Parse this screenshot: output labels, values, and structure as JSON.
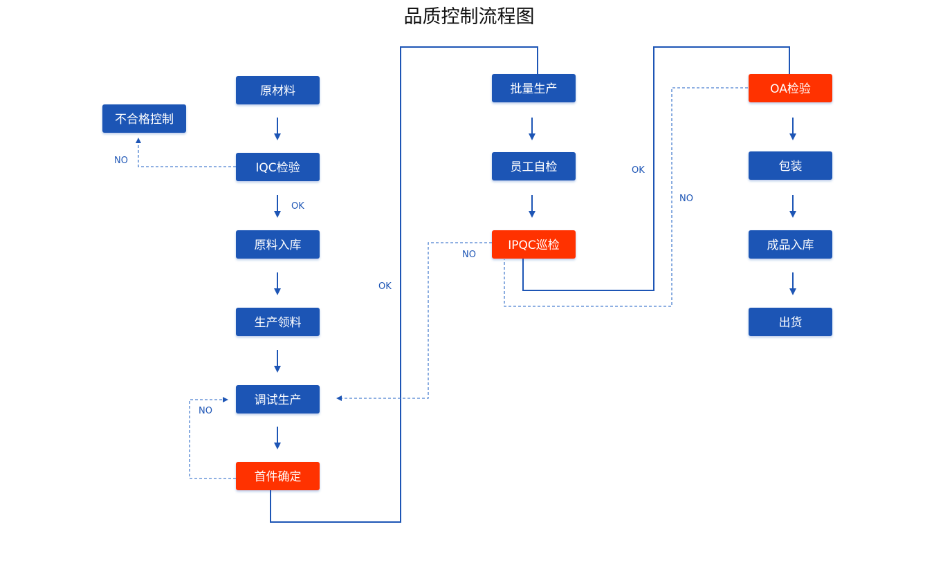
{
  "title": "品质控制流程图",
  "colors": {
    "normal": "#1d55b5",
    "checkpoint": "#ff3300",
    "line": "#1d55b5"
  },
  "nodes": [
    {
      "id": "raw",
      "label": "原材料",
      "type": "normal"
    },
    {
      "id": "reject",
      "label": "不合格控制",
      "type": "normal"
    },
    {
      "id": "iqc",
      "label": "IQC检验",
      "type": "normal"
    },
    {
      "id": "store",
      "label": "原料入库",
      "type": "normal"
    },
    {
      "id": "pick",
      "label": "生产领料",
      "type": "normal"
    },
    {
      "id": "debug",
      "label": "调试生产",
      "type": "normal"
    },
    {
      "id": "first",
      "label": "首件确定",
      "type": "checkpoint"
    },
    {
      "id": "batch",
      "label": "批量生产",
      "type": "normal"
    },
    {
      "id": "self",
      "label": "员工自检",
      "type": "normal"
    },
    {
      "id": "ipqc",
      "label": "IPQC巡检",
      "type": "checkpoint"
    },
    {
      "id": "oa",
      "label": "OA检验",
      "type": "checkpoint"
    },
    {
      "id": "pack",
      "label": "包装",
      "type": "normal"
    },
    {
      "id": "fg",
      "label": "成品入库",
      "type": "normal"
    },
    {
      "id": "ship",
      "label": "出货",
      "type": "normal"
    }
  ],
  "edge_labels": {
    "iqc_no": "NO",
    "iqc_ok": "OK",
    "first_ok": "OK",
    "ipqc_no": "NO",
    "ipqc_ok": "OK",
    "oa_no": "NO",
    "first_no": "NO"
  }
}
